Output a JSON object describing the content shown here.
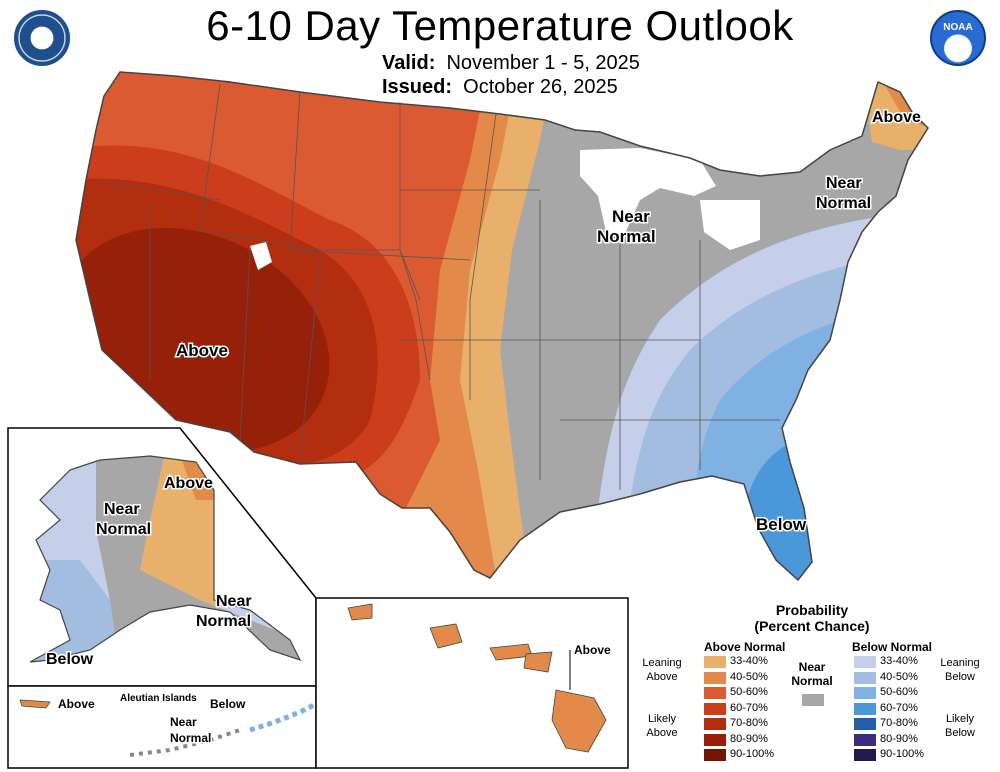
{
  "header": {
    "title": "6-10 Day Temperature Outlook",
    "valid_label": "Valid:",
    "valid_value": "November 1 - 5, 2025",
    "issued_label": "Issued:",
    "issued_value": "October 26, 2025",
    "noaa_text": "NOAA"
  },
  "map_labels": {
    "conus_above": "Above",
    "conus_near_normal_1": "Near",
    "conus_near_normal_2": "Normal",
    "ne_above": "Above",
    "ne_near_1": "Near",
    "ne_near_2": "Normal",
    "se_below": "Below",
    "ak_above": "Above",
    "ak_near_1": "Near",
    "ak_near_2": "Normal",
    "ak_se_near_1": "Near",
    "ak_se_near_2": "Normal",
    "ak_below": "Below",
    "aleut_above": "Above",
    "aleut_title": "Aleutian Islands",
    "aleut_below": "Below",
    "aleut_near_1": "Near",
    "aleut_near_2": "Normal",
    "hi_above": "Above"
  },
  "legend": {
    "title_1": "Probability",
    "title_2": "(Percent Chance)",
    "above_head": "Above Normal",
    "below_head": "Below Normal",
    "near_1": "Near",
    "near_2": "Normal",
    "leaning_above_1": "Leaning",
    "leaning_above_2": "Above",
    "likely_above_1": "Likely",
    "likely_above_2": "Above",
    "leaning_below_1": "Leaning",
    "leaning_below_2": "Below",
    "likely_below_1": "Likely",
    "likely_below_2": "Below",
    "bins": [
      "33-40%",
      "40-50%",
      "50-60%",
      "60-70%",
      "70-80%",
      "80-90%",
      "90-100%"
    ],
    "above_colors": [
      "#e8b06a",
      "#e38a4a",
      "#dc5a32",
      "#cc3d1c",
      "#b32d0f",
      "#972108",
      "#6e1503"
    ],
    "below_colors": [
      "#c5cfe9",
      "#a3bde1",
      "#7fb1e3",
      "#4a98da",
      "#225fa8",
      "#3a2d7a",
      "#241a4e"
    ],
    "near_color": "#a7a7a7"
  }
}
